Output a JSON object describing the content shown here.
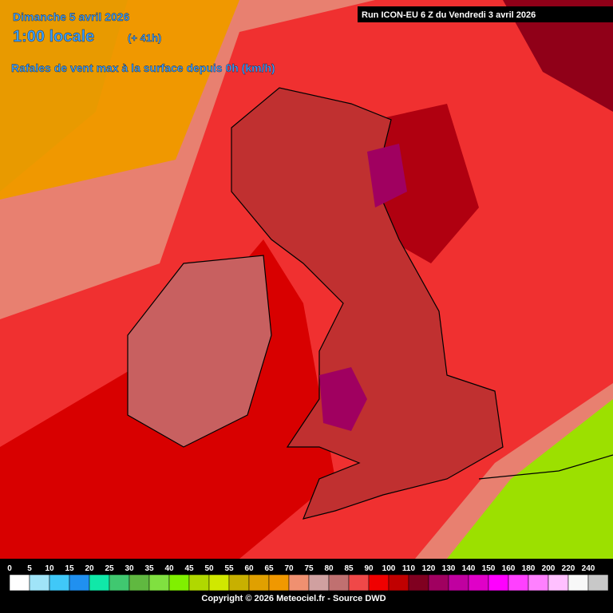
{
  "header": {
    "date": "Dimanche 5 avril 2026",
    "time": "1:00 locale",
    "offset": "(+ 41h)",
    "subtitle": "Rafales de vent max à la surface depuis 0h (km/h)",
    "run": "Run ICON-EU 6 Z du Vendredi 3 avril 2026"
  },
  "legend": {
    "values": [
      0,
      5,
      10,
      15,
      20,
      25,
      30,
      35,
      40,
      45,
      50,
      55,
      60,
      65,
      70,
      75,
      80,
      85,
      90,
      100,
      110,
      120,
      130,
      140,
      150,
      160,
      180,
      200,
      220,
      240
    ],
    "colors": [
      "#ffffff",
      "#a0e4f8",
      "#40c8f8",
      "#2090f0",
      "#10e8a8",
      "#40c870",
      "#60b840",
      "#80e040",
      "#80f000",
      "#b0d800",
      "#d0e800",
      "#c8b000",
      "#e0a000",
      "#f09800",
      "#f09070",
      "#d0a0a0",
      "#c07070",
      "#f04848",
      "#f00000",
      "#c00000",
      "#800020",
      "#a00060",
      "#c000a0",
      "#e000c8",
      "#ff00ff",
      "#ff40ff",
      "#ff80ff",
      "#ffc0ff",
      "#f8f8f8",
      "#c8c8c8"
    ]
  },
  "footer": {
    "copyright": "Copyright © 2026 Meteociel.fr - Source DWD"
  }
}
